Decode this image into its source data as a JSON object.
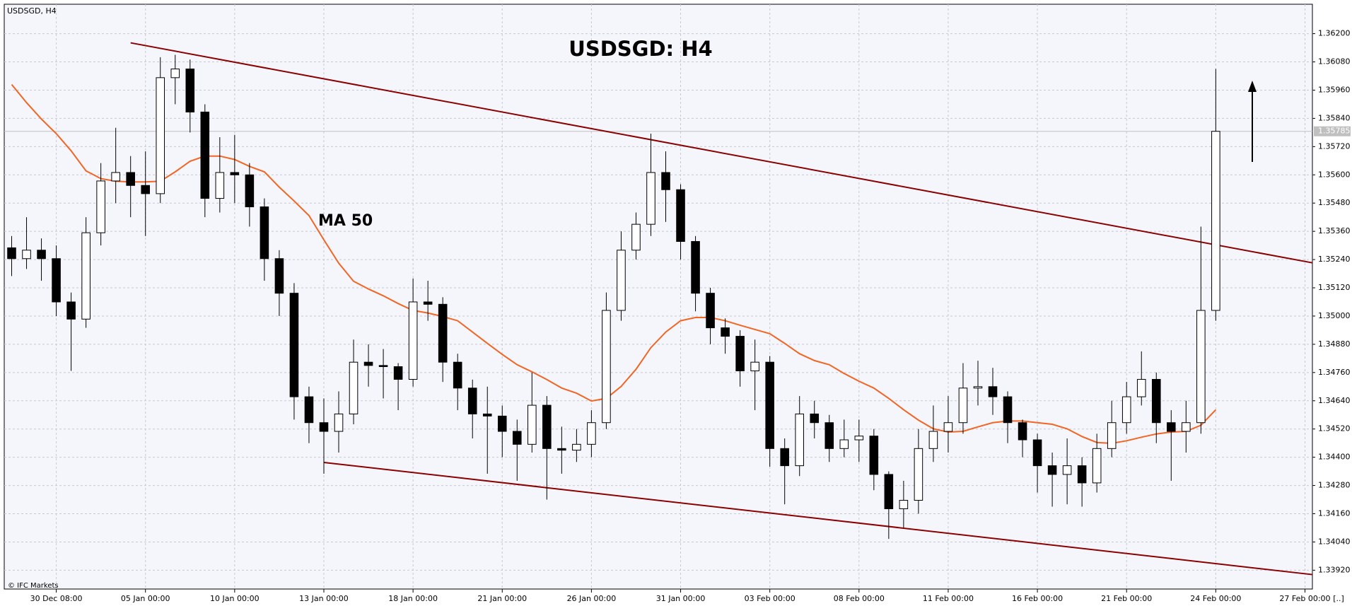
{
  "chart_data": {
    "type": "candlestick",
    "symbol": "USDSGD, H4",
    "title": "USDSGD: H4",
    "copyright": "© IFC Markets",
    "corner_label": "[..]",
    "up_color": "#ffffff",
    "down_color": "#000000",
    "grid": true,
    "ylim": [
      1.3384,
      1.36325
    ],
    "yticks": [
      {
        "value": 1.362,
        "label": "1.36200"
      },
      {
        "value": 1.3608,
        "label": "1.36080"
      },
      {
        "value": 1.3596,
        "label": "1.35960"
      },
      {
        "value": 1.3584,
        "label": "1.35840"
      },
      {
        "value": 1.3572,
        "label": "1.35720"
      },
      {
        "value": 1.356,
        "label": "1.35600"
      },
      {
        "value": 1.3548,
        "label": "1.35480"
      },
      {
        "value": 1.3536,
        "label": "1.35360"
      },
      {
        "value": 1.3524,
        "label": "1.35240"
      },
      {
        "value": 1.3512,
        "label": "1.35120"
      },
      {
        "value": 1.35,
        "label": "1.35000"
      },
      {
        "value": 1.3488,
        "label": "1.34880"
      },
      {
        "value": 1.3476,
        "label": "1.34760"
      },
      {
        "value": 1.3464,
        "label": "1.34640"
      },
      {
        "value": 1.3452,
        "label": "1.34520"
      },
      {
        "value": 1.344,
        "label": "1.34400"
      },
      {
        "value": 1.3428,
        "label": "1.34280"
      },
      {
        "value": 1.3416,
        "label": "1.34160"
      },
      {
        "value": 1.3404,
        "label": "1.34040"
      },
      {
        "value": 1.3392,
        "label": "1.33920"
      }
    ],
    "last_price": {
      "value": 1.35785,
      "label": "1.35785"
    },
    "categories": [
      null,
      null,
      null,
      "30 Dec 08:00",
      null,
      null,
      null,
      null,
      null,
      "05 Jan 00:00",
      null,
      null,
      null,
      null,
      null,
      "10 Jan 00:00",
      null,
      null,
      null,
      null,
      null,
      "13 Jan 00:00",
      null,
      null,
      null,
      null,
      null,
      "18 Jan 00:00",
      null,
      null,
      null,
      null,
      null,
      "21 Jan 00:00",
      null,
      null,
      null,
      null,
      null,
      "26 Jan 00:00",
      null,
      null,
      null,
      null,
      null,
      "31 Jan 00:00",
      null,
      null,
      null,
      null,
      null,
      "03 Feb 00:00",
      null,
      null,
      null,
      null,
      null,
      "08 Feb 00:00",
      null,
      null,
      null,
      null,
      null,
      "11 Feb 00:00",
      null,
      null,
      null,
      null,
      null,
      "16 Feb 00:00",
      null,
      null,
      null,
      null,
      null,
      "21 Feb 00:00",
      null,
      null,
      null,
      null,
      null,
      "24 Feb 00:00",
      null,
      null,
      null,
      null,
      null,
      "27 Feb 00:00"
    ],
    "open": [
      1.3529,
      1.35244,
      1.3528,
      1.35244,
      1.3506,
      1.34987,
      1.35354,
      1.35574,
      1.3561,
      1.35555,
      1.3552,
      1.36013,
      1.3605,
      1.35867,
      1.355,
      1.3561,
      1.356,
      1.35464,
      1.35244,
      1.35097,
      1.34657,
      1.34547,
      1.3451,
      1.34584,
      1.34804,
      1.3479,
      1.34785,
      1.34731,
      1.3506,
      1.3505,
      1.34804,
      1.34694,
      1.34584,
      1.34575,
      1.3451,
      1.34455,
      1.34621,
      1.34437,
      1.3443,
      1.34455,
      1.34547,
      1.35024,
      1.3528,
      1.3539,
      1.3561,
      1.35537,
      1.35317,
      1.35097,
      1.3495,
      1.34914,
      1.34767,
      1.34804,
      1.34437,
      1.34364,
      1.34584,
      1.34547,
      1.34437,
      1.34474,
      1.3449,
      1.34327,
      1.34181,
      1.34217,
      1.34437,
      1.3451,
      1.34547,
      1.34694,
      1.347,
      1.34657,
      1.34547,
      1.34474,
      1.34364,
      1.34327,
      1.34364,
      1.34291,
      1.34437,
      1.34547,
      1.34657,
      1.34731,
      1.34547,
      1.3451,
      1.34547,
      1.35024,
      null,
      null,
      null,
      null,
      null,
      null
    ],
    "high": [
      1.3534,
      1.3542,
      1.3533,
      1.353,
      1.351,
      1.3542,
      1.3565,
      1.358,
      1.3568,
      1.357,
      1.361,
      1.3611,
      1.3609,
      1.359,
      1.3576,
      1.3577,
      1.3565,
      1.355,
      1.3528,
      1.3514,
      1.347,
      1.3465,
      1.3468,
      1.349,
      1.3488,
      1.3486,
      1.348,
      1.3516,
      1.3515,
      1.3508,
      1.3484,
      1.3473,
      1.347,
      1.3462,
      1.3456,
      1.3476,
      1.3466,
      1.3453,
      1.3452,
      1.346,
      1.351,
      1.3536,
      1.3544,
      1.35775,
      1.357,
      1.3556,
      1.3534,
      1.3512,
      1.3499,
      1.3494,
      1.349,
      1.3483,
      1.3448,
      1.3466,
      1.3464,
      1.3458,
      1.3456,
      1.3456,
      1.3452,
      1.3434,
      1.343,
      1.3452,
      1.3462,
      1.3466,
      1.348,
      1.3481,
      1.3478,
      1.3468,
      1.3456,
      1.345,
      1.3442,
      1.3448,
      1.344,
      1.345,
      1.3464,
      1.3472,
      1.3485,
      1.3476,
      1.346,
      1.3464,
      1.3538,
      1.3605,
      null,
      null,
      null,
      null,
      null,
      null
    ],
    "low": [
      1.3517,
      1.352,
      1.3515,
      1.35,
      1.34767,
      1.3495,
      1.353,
      1.3548,
      1.3542,
      1.3534,
      1.3548,
      1.359,
      1.3578,
      1.3542,
      1.3544,
      1.3548,
      1.3538,
      1.3515,
      1.35,
      1.3456,
      1.3446,
      1.3433,
      1.3442,
      1.3454,
      1.347,
      1.3465,
      1.346,
      1.347,
      1.3498,
      1.3472,
      1.346,
      1.3448,
      1.3433,
      1.344,
      1.343,
      1.3442,
      1.3422,
      1.3433,
      1.3438,
      1.344,
      1.3452,
      1.3498,
      1.3524,
      1.3534,
      1.354,
      1.3524,
      1.3502,
      1.3488,
      1.3484,
      1.347,
      1.346,
      1.3436,
      1.342,
      1.3432,
      1.3448,
      1.3438,
      1.344,
      1.3438,
      1.3426,
      1.34053,
      1.341,
      1.3416,
      1.3438,
      1.3442,
      1.345,
      1.3462,
      1.3458,
      1.3446,
      1.344,
      1.3425,
      1.3419,
      1.342,
      1.3419,
      1.3425,
      1.344,
      1.345,
      1.3462,
      1.3446,
      1.343,
      1.3442,
      1.345,
      1.3498,
      null,
      null,
      null,
      null,
      null,
      null
    ],
    "close": [
      1.35244,
      1.3528,
      1.35244,
      1.3506,
      1.34987,
      1.35354,
      1.35574,
      1.3561,
      1.35555,
      1.3552,
      1.36013,
      1.3605,
      1.35867,
      1.355,
      1.3561,
      1.356,
      1.35464,
      1.35244,
      1.35097,
      1.34657,
      1.34547,
      1.3451,
      1.34584,
      1.34804,
      1.3479,
      1.34785,
      1.34731,
      1.3506,
      1.3505,
      1.34804,
      1.34694,
      1.34584,
      1.34575,
      1.3451,
      1.34455,
      1.34621,
      1.34437,
      1.3443,
      1.34455,
      1.34547,
      1.35024,
      1.3528,
      1.3539,
      1.3561,
      1.35537,
      1.35317,
      1.35097,
      1.3495,
      1.34914,
      1.34767,
      1.34804,
      1.34437,
      1.34364,
      1.34584,
      1.34547,
      1.34437,
      1.34474,
      1.3449,
      1.34327,
      1.34181,
      1.34217,
      1.34437,
      1.3451,
      1.34547,
      1.34694,
      1.347,
      1.34657,
      1.34547,
      1.34474,
      1.34364,
      1.34327,
      1.34364,
      1.34291,
      1.34437,
      1.34547,
      1.34657,
      1.34731,
      1.34547,
      1.3451,
      1.34547,
      1.35024,
      1.35785,
      null,
      null,
      null,
      null,
      null,
      null
    ],
    "series": [
      {
        "name": "MA 50",
        "color": "#f26522",
        "values": [
          1.35984,
          1.35907,
          1.35837,
          1.35775,
          1.35702,
          1.35617,
          1.35584,
          1.35573,
          1.3557,
          1.3557,
          1.35573,
          1.35613,
          1.35658,
          1.3568,
          1.3568,
          1.35665,
          1.35636,
          1.35613,
          1.35548,
          1.35489,
          1.35427,
          1.35324,
          1.35225,
          1.35148,
          1.35115,
          1.35086,
          1.35053,
          1.35024,
          1.35013,
          1.34998,
          1.3498,
          1.34932,
          1.34884,
          1.34837,
          1.34793,
          1.34763,
          1.3473,
          1.34694,
          1.34672,
          1.34639,
          1.3465,
          1.34701,
          1.34774,
          1.34866,
          1.34932,
          1.3498,
          1.34994,
          1.34994,
          1.3498,
          1.34961,
          1.34943,
          1.34925,
          1.34884,
          1.3484,
          1.34811,
          1.34793,
          1.34756,
          1.34723,
          1.34694,
          1.3465,
          1.34602,
          1.34558,
          1.34521,
          1.34507,
          1.3451,
          1.34529,
          1.34547,
          1.34554,
          1.34554,
          1.34547,
          1.3454,
          1.34521,
          1.34488,
          1.34463,
          1.34459,
          1.3447,
          1.34485,
          1.34499,
          1.34507,
          1.3451,
          1.34536,
          1.34602,
          null,
          null,
          null,
          null,
          null,
          null
        ]
      }
    ],
    "trendlines": [
      {
        "color": "#8b0000",
        "x": [
          8,
          87
        ],
        "values": [
          1.36161,
          1.35232
        ]
      },
      {
        "color": "#8b0000",
        "x": [
          21,
          87
        ],
        "values": [
          1.34378,
          1.33905
        ]
      }
    ]
  }
}
